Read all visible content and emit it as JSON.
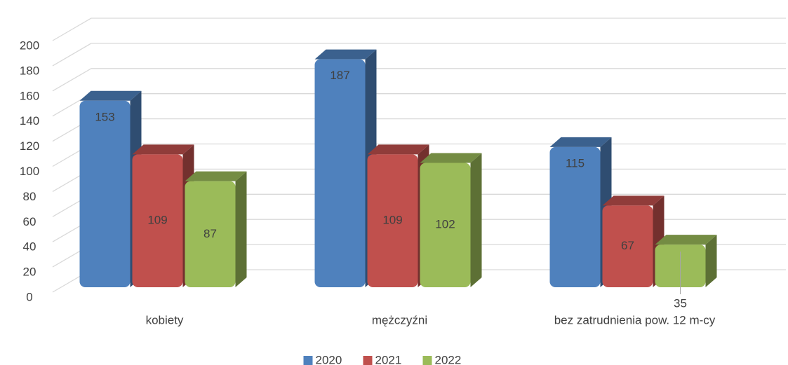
{
  "chart_data": {
    "type": "bar3d",
    "categories": [
      "kobiety",
      "mężczyźni",
      "bez zatrudnienia pow. 12 m-cy"
    ],
    "series": [
      {
        "name": "2020",
        "color": "#4f81bd",
        "values": [
          153,
          187,
          115
        ]
      },
      {
        "name": "2021",
        "color": "#c0504d",
        "values": [
          109,
          109,
          67
        ]
      },
      {
        "name": "2022",
        "color": "#9bbb59",
        "values": [
          87,
          102,
          35
        ]
      }
    ],
    "ylim": [
      0,
      200
    ],
    "yticks": [
      0,
      20,
      40,
      60,
      80,
      100,
      120,
      140,
      160,
      180,
      200
    ],
    "grid": true,
    "legend": "bottom"
  }
}
